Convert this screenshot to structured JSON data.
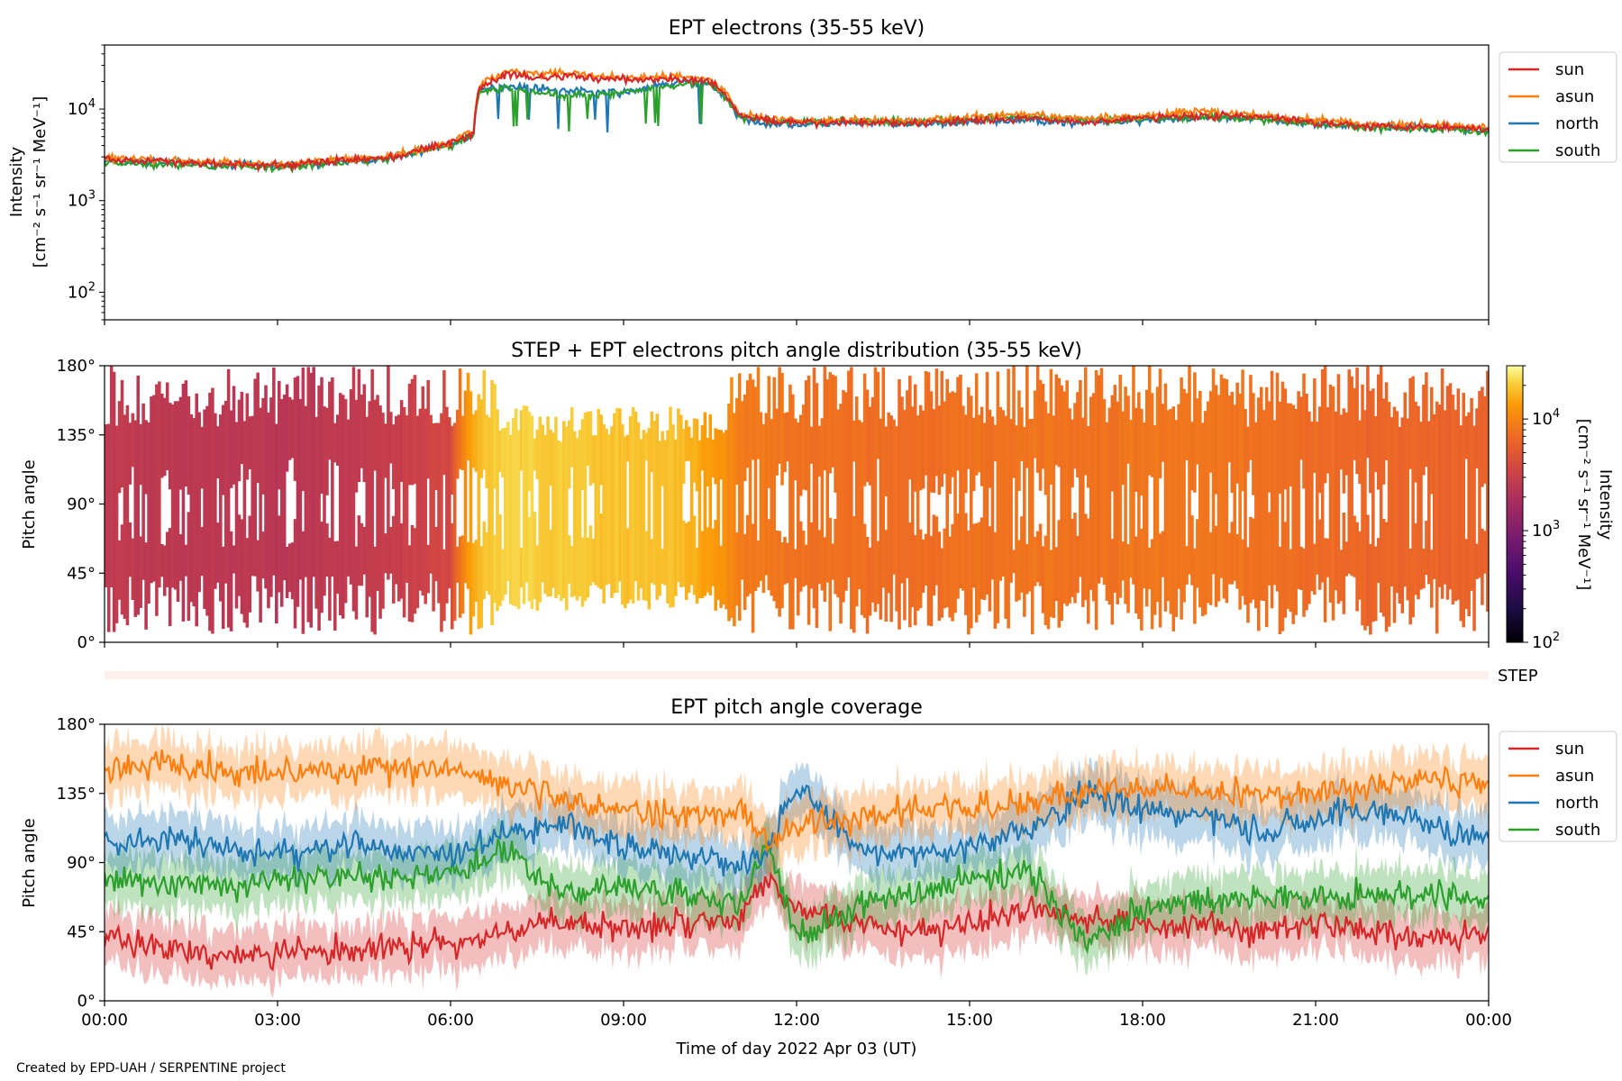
{
  "credit": "Created by EPD-UAH / SERPENTINE project",
  "colors": {
    "sun": "#d62728",
    "asun": "#ff7f0e",
    "north": "#1f77b4",
    "south": "#2ca02c",
    "step_band": "#fdf0ea"
  },
  "chart_data": [
    {
      "type": "line",
      "title": "EPT electrons (35-55 keV)",
      "ylabel_line1": "Intensity",
      "ylabel_line2": "[cm⁻² s⁻¹ sr⁻¹ MeV⁻¹]",
      "yscale": "log",
      "ylim": [
        50,
        50000
      ],
      "yticks": [
        {
          "value": 100,
          "base": "10",
          "exp": "2"
        },
        {
          "value": 1000,
          "base": "10",
          "exp": "3"
        },
        {
          "value": 10000,
          "base": "10",
          "exp": "4"
        }
      ],
      "xlim": [
        0,
        24
      ],
      "legend_position": "right",
      "x": [
        0,
        1,
        2,
        3,
        4,
        5,
        6,
        6.4,
        6.5,
        7,
        7.5,
        8,
        9,
        10,
        10.5,
        11,
        11.5,
        12,
        13,
        14,
        15,
        16,
        17,
        18,
        19,
        20,
        21,
        22,
        23,
        24
      ],
      "series": [
        {
          "name": "sun",
          "values": [
            2800,
            2700,
            2500,
            2400,
            2700,
            3000,
            4200,
            5500,
            17000,
            24000,
            22000,
            23000,
            21000,
            21000,
            20000,
            8500,
            7500,
            7000,
            7200,
            7000,
            7600,
            7800,
            7200,
            8000,
            8500,
            8200,
            7200,
            6500,
            6500,
            6000
          ]
        },
        {
          "name": "asun",
          "values": [
            2900,
            2800,
            2600,
            2500,
            2800,
            3100,
            4300,
            5800,
            18000,
            26000,
            24000,
            25000,
            22000,
            23000,
            21000,
            9000,
            8000,
            7500,
            7600,
            7400,
            8200,
            8600,
            7800,
            8400,
            9500,
            8600,
            7600,
            6800,
            6800,
            6200
          ]
        },
        {
          "name": "north",
          "values": [
            2700,
            2600,
            2500,
            2400,
            2600,
            2900,
            4100,
            5300,
            16000,
            18000,
            17000,
            16000,
            15000,
            20000,
            19000,
            8000,
            7000,
            6800,
            7000,
            6800,
            7200,
            7600,
            7100,
            7600,
            8000,
            7800,
            7000,
            6300,
            6300,
            5800
          ]
        },
        {
          "name": "south",
          "values": [
            2600,
            2500,
            2400,
            2300,
            2600,
            2900,
            4000,
            5200,
            15500,
            17000,
            15000,
            14000,
            15000,
            19000,
            18500,
            8200,
            7600,
            7400,
            7400,
            7200,
            7800,
            8400,
            7600,
            7800,
            8200,
            7600,
            6800,
            6200,
            6200,
            5600
          ]
        }
      ]
    },
    {
      "type": "heatmap",
      "title": "STEP + EPT electrons pitch angle distribution (35-55 keV)",
      "ylabel": "Pitch angle",
      "ylim": [
        0,
        180
      ],
      "yticks": [
        "0°",
        "45°",
        "90°",
        "135°",
        "180°"
      ],
      "colorbar_label_line1": "Intensity",
      "colorbar_label_line2": "[cm⁻² s⁻¹ sr⁻¹ MeV⁻¹]",
      "colorbar_scale": "log",
      "colorbar_range": [
        100,
        30000
      ],
      "colorbar_ticks": [
        {
          "value": 100,
          "base": "10",
          "exp": "2"
        },
        {
          "value": 1000,
          "base": "10",
          "exp": "3"
        },
        {
          "value": 10000,
          "base": "10",
          "exp": "4"
        }
      ],
      "step_label": "STEP",
      "x": [
        0,
        1,
        2,
        3,
        4,
        5,
        6,
        6.5,
        7,
        8,
        9,
        10,
        11,
        12,
        13,
        14,
        15,
        16,
        16.5,
        17,
        18,
        19,
        20,
        21,
        22,
        23,
        24
      ],
      "intensity": [
        2700,
        2600,
        2500,
        2400,
        2600,
        2900,
        3600,
        18000,
        22000,
        20000,
        19000,
        18000,
        9000,
        7600,
        7400,
        7200,
        7600,
        7800,
        7800,
        7600,
        8000,
        8200,
        7600,
        7000,
        6400,
        6400,
        6000
      ]
    },
    {
      "type": "line",
      "title": "EPT pitch angle coverage",
      "ylabel": "Pitch angle",
      "xlabel": "Time of day 2022 Apr 03 (UT)",
      "ylim": [
        0,
        180
      ],
      "yticks": [
        "0°",
        "45°",
        "90°",
        "135°",
        "180°"
      ],
      "xticks": [
        "00:00",
        "03:00",
        "06:00",
        "09:00",
        "12:00",
        "15:00",
        "18:00",
        "21:00",
        "00:00"
      ],
      "xlim": [
        0,
        24
      ],
      "legend_position": "right",
      "x": [
        0,
        1,
        2,
        3,
        4,
        5,
        6,
        7,
        8,
        9,
        10,
        11,
        11.5,
        12,
        13,
        14,
        15,
        16,
        17,
        18,
        19,
        20,
        21,
        22,
        23,
        24
      ],
      "series": [
        {
          "name": "sun",
          "values": [
            40,
            35,
            30,
            30,
            32,
            35,
            38,
            45,
            50,
            48,
            52,
            55,
            80,
            60,
            50,
            45,
            50,
            60,
            55,
            50,
            50,
            45,
            50,
            45,
            40,
            45
          ]
        },
        {
          "name": "asun",
          "values": [
            150,
            155,
            150,
            148,
            150,
            152,
            150,
            140,
            130,
            125,
            120,
            125,
            100,
            115,
            120,
            125,
            125,
            130,
            135,
            140,
            135,
            135,
            135,
            140,
            145,
            140
          ]
        },
        {
          "name": "north",
          "values": [
            100,
            105,
            100,
            95,
            100,
            100,
            95,
            110,
            115,
            100,
            95,
            90,
            95,
            140,
            100,
            95,
            100,
            110,
            135,
            125,
            120,
            110,
            120,
            125,
            115,
            105
          ]
        },
        {
          "name": "south",
          "values": [
            80,
            75,
            75,
            78,
            80,
            80,
            85,
            95,
            70,
            75,
            70,
            60,
            105,
            40,
            60,
            70,
            80,
            85,
            40,
            60,
            65,
            70,
            65,
            70,
            70,
            65
          ]
        }
      ]
    }
  ]
}
